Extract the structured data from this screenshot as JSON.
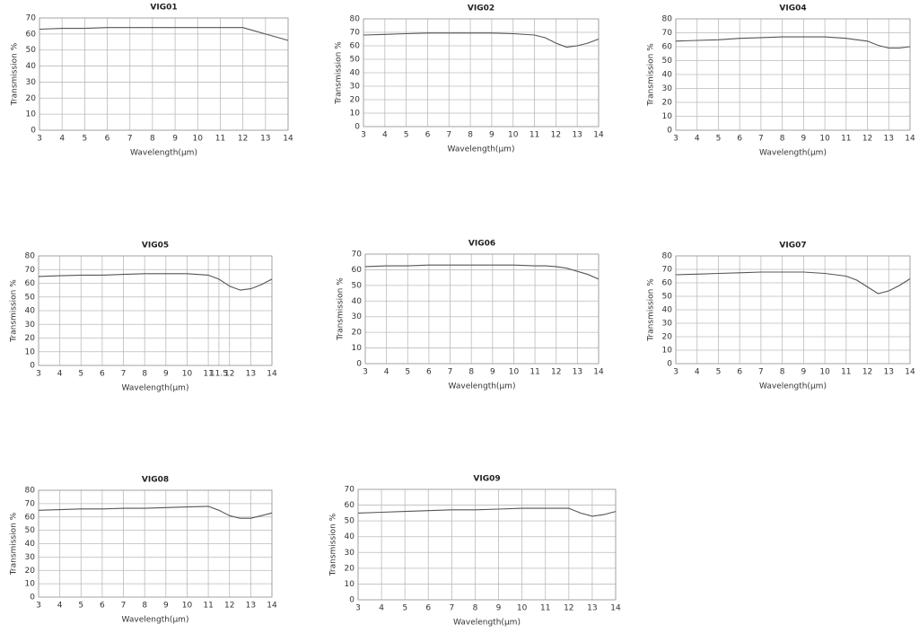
{
  "chart_data": [
    {
      "type": "line",
      "title": "VIG01",
      "x_label": "Wavelength(μm)",
      "y_label": "Transmission %",
      "xlim": [
        3,
        14
      ],
      "xticks": [
        3,
        4,
        5,
        6,
        7,
        8,
        9,
        10,
        11,
        12,
        13,
        14
      ],
      "ylim": [
        0,
        70
      ],
      "yticks": [
        0,
        10,
        20,
        30,
        40,
        50,
        60,
        70
      ],
      "grid": true,
      "x": [
        3,
        4,
        5,
        6,
        7,
        8,
        9,
        10,
        11,
        11.5,
        12,
        12.5,
        13,
        13.5,
        14
      ],
      "series": [
        {
          "color": "#555555",
          "values": [
            63,
            63.5,
            63.5,
            64,
            64,
            64,
            64,
            64,
            64,
            64,
            64,
            62,
            60,
            58,
            56
          ]
        }
      ]
    },
    {
      "type": "line",
      "title": "VIG02",
      "x_label": "Wavelength(μm)",
      "y_label": "Transmission %",
      "xlim": [
        3,
        14
      ],
      "xticks": [
        3,
        4,
        5,
        6,
        7,
        8,
        9,
        10,
        11,
        12,
        13,
        14
      ],
      "ylim": [
        0,
        80
      ],
      "yticks": [
        0,
        10,
        20,
        30,
        40,
        50,
        60,
        70,
        80
      ],
      "grid": true,
      "x": [
        3,
        4,
        5,
        6,
        7,
        8,
        9,
        10,
        11,
        11.5,
        12,
        12.5,
        13,
        13.5,
        14
      ],
      "series": [
        {
          "color": "#555555",
          "values": [
            68,
            68.5,
            69,
            69.5,
            69.5,
            69.5,
            69.5,
            69,
            68,
            66,
            62,
            59,
            60,
            62,
            65
          ]
        }
      ]
    },
    {
      "type": "line",
      "title": "VIG04",
      "x_label": "Wavelength(μm)",
      "y_label": "Transmission %",
      "xlim": [
        3,
        14
      ],
      "xticks": [
        3,
        4,
        5,
        6,
        7,
        8,
        9,
        10,
        11,
        12,
        13,
        14
      ],
      "ylim": [
        0,
        80
      ],
      "yticks": [
        0,
        10,
        20,
        30,
        40,
        50,
        60,
        70,
        80
      ],
      "grid": true,
      "x": [
        3,
        4,
        5,
        6,
        7,
        8,
        9,
        10,
        11,
        11.5,
        12,
        12.5,
        13,
        13.5,
        14
      ],
      "series": [
        {
          "color": "#555555",
          "values": [
            64,
            64.5,
            65,
            66,
            66.5,
            67,
            67,
            67,
            66,
            65,
            64,
            61,
            59,
            59,
            60
          ]
        }
      ]
    },
    {
      "type": "line",
      "title": "VIG05",
      "x_label": "Wavelength(μm)",
      "y_label": "Transmission %",
      "xlim": [
        3,
        14
      ],
      "xticks": [
        3,
        4,
        5,
        6,
        7,
        8,
        9,
        10,
        11,
        11.5,
        12,
        13,
        14
      ],
      "ylim": [
        0,
        80
      ],
      "yticks": [
        0,
        10,
        20,
        30,
        40,
        50,
        60,
        70,
        80
      ],
      "grid": true,
      "x": [
        3,
        4,
        5,
        6,
        7,
        8,
        9,
        10,
        11,
        11.5,
        12,
        12.5,
        13,
        13.5,
        14
      ],
      "series": [
        {
          "color": "#555555",
          "values": [
            65,
            65.5,
            66,
            66,
            66.5,
            67,
            67,
            67,
            66,
            63,
            58,
            55,
            56,
            59,
            63
          ]
        }
      ]
    },
    {
      "type": "line",
      "title": "VIG06",
      "x_label": "Wavelength(μm)",
      "y_label": "Transmission %",
      "xlim": [
        3,
        14
      ],
      "xticks": [
        3,
        4,
        5,
        6,
        7,
        8,
        9,
        10,
        11,
        12,
        13,
        14
      ],
      "ylim": [
        0,
        70
      ],
      "yticks": [
        0,
        10,
        20,
        30,
        40,
        50,
        60,
        70
      ],
      "grid": true,
      "x": [
        3,
        4,
        5,
        6,
        7,
        8,
        9,
        10,
        11,
        11.5,
        12,
        12.5,
        13,
        13.5,
        14
      ],
      "series": [
        {
          "color": "#555555",
          "values": [
            62,
            62.5,
            62.5,
            63,
            63,
            63,
            63,
            63,
            62.5,
            62.5,
            62,
            61,
            59,
            57,
            54
          ]
        }
      ]
    },
    {
      "type": "line",
      "title": "VIG07",
      "x_label": "Wavelength(μm)",
      "y_label": "Transmission %",
      "xlim": [
        3,
        14
      ],
      "xticks": [
        3,
        4,
        5,
        6,
        7,
        8,
        9,
        10,
        11,
        12,
        13,
        14
      ],
      "ylim": [
        0,
        80
      ],
      "yticks": [
        0,
        10,
        20,
        30,
        40,
        50,
        60,
        70,
        80
      ],
      "grid": true,
      "x": [
        3,
        4,
        5,
        6,
        7,
        8,
        9,
        10,
        11,
        11.5,
        12,
        12.5,
        13,
        13.5,
        14
      ],
      "series": [
        {
          "color": "#555555",
          "values": [
            66,
            66.5,
            67,
            67.5,
            68,
            68,
            68,
            67,
            65,
            62,
            57,
            52,
            54,
            58,
            63
          ]
        }
      ]
    },
    {
      "type": "line",
      "title": "VIG08",
      "x_label": "Wavelength(μm)",
      "y_label": "Transmission %",
      "xlim": [
        3,
        14
      ],
      "xticks": [
        3,
        4,
        5,
        6,
        7,
        8,
        9,
        10,
        11,
        12,
        13,
        14
      ],
      "ylim": [
        0,
        80
      ],
      "yticks": [
        0,
        10,
        20,
        30,
        40,
        50,
        60,
        70,
        80
      ],
      "grid": true,
      "x": [
        3,
        4,
        5,
        6,
        7,
        8,
        9,
        10,
        11,
        11.5,
        12,
        12.5,
        13,
        13.5,
        14
      ],
      "series": [
        {
          "color": "#555555",
          "values": [
            65,
            65.5,
            66,
            66,
            66.5,
            66.5,
            67,
            67.5,
            68,
            65,
            61,
            59,
            59,
            61,
            63
          ]
        }
      ]
    },
    {
      "type": "line",
      "title": "VIG09",
      "x_label": "Wavelength(μm)",
      "y_label": "Transmission %",
      "xlim": [
        3,
        14
      ],
      "xticks": [
        3,
        4,
        5,
        6,
        7,
        8,
        9,
        10,
        11,
        12,
        13,
        14
      ],
      "ylim": [
        0,
        70
      ],
      "yticks": [
        0,
        10,
        20,
        30,
        40,
        50,
        60,
        70
      ],
      "grid": true,
      "x": [
        3,
        4,
        5,
        6,
        7,
        8,
        9,
        10,
        11,
        11.5,
        12,
        12.5,
        13,
        13.5,
        14
      ],
      "series": [
        {
          "color": "#555555",
          "values": [
            55,
            55.5,
            56,
            56.5,
            57,
            57,
            57.5,
            58,
            58,
            58,
            58,
            55,
            53,
            54,
            56
          ]
        }
      ]
    }
  ]
}
